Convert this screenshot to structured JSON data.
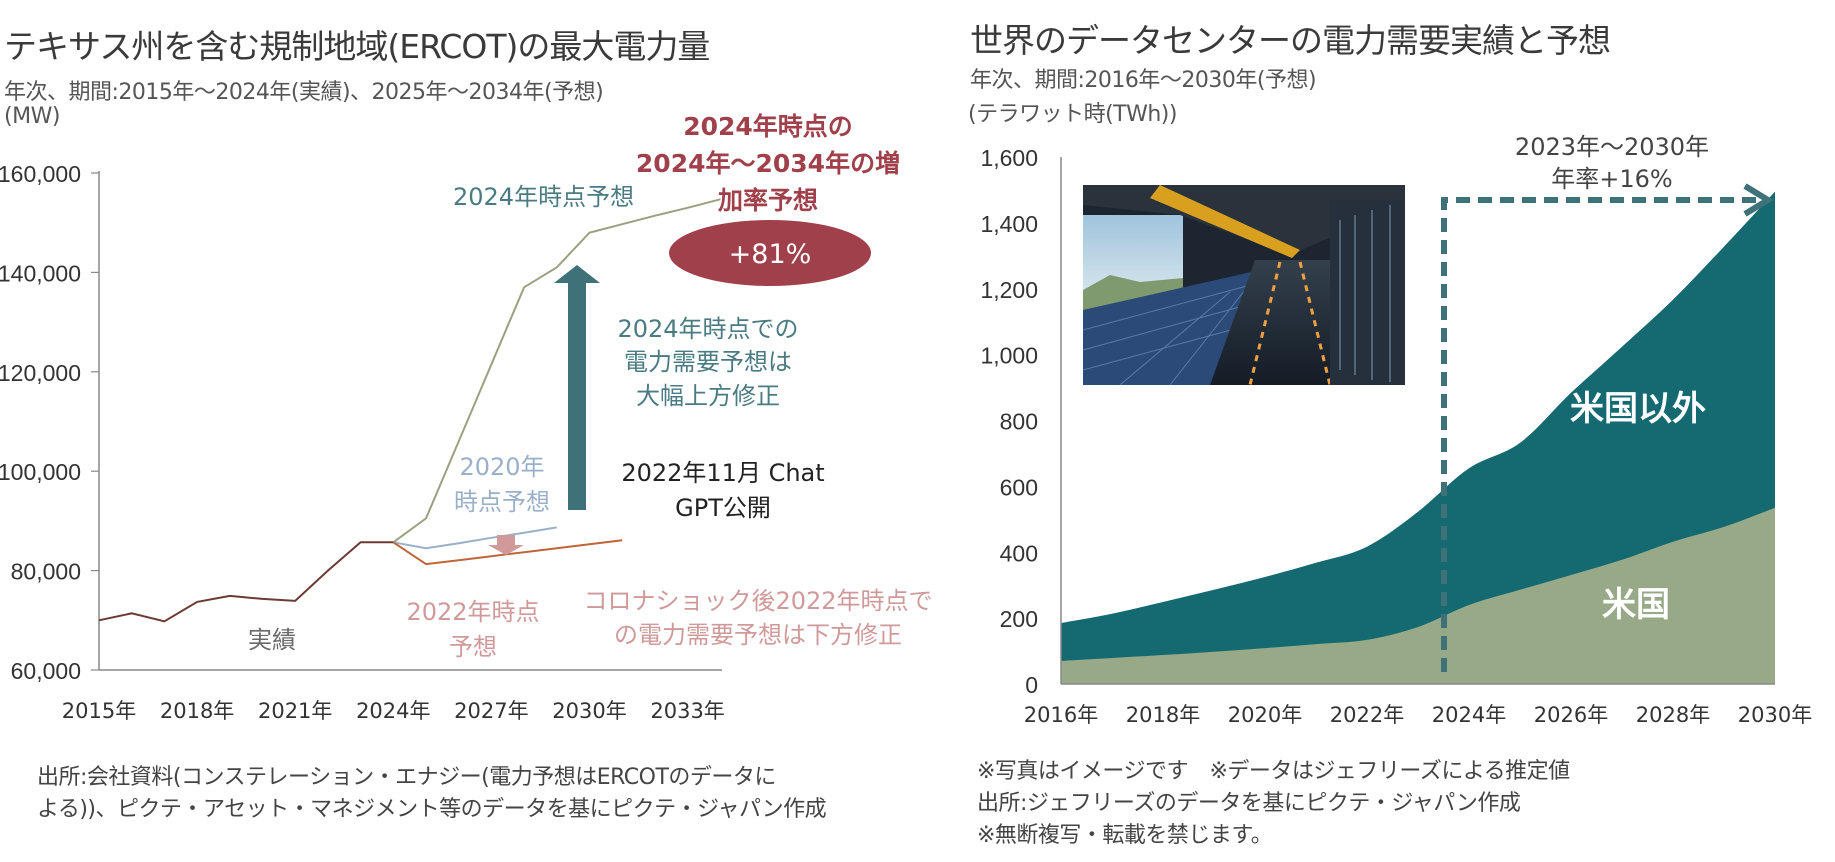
{
  "left": {
    "title": "テキサス州を含む規制地域(ERCOT)の最大電力量",
    "subtitle": "年次、期間:2015年～2024年(実績)、2025年～2034年(予想)",
    "unit": "(MW)",
    "annotations": {
      "forecast_2024": "2024年時点予想",
      "growth_title": [
        "2024年時点の",
        "2024年～2034年の増",
        "加率予想"
      ],
      "growth_value": "+81%",
      "upward": [
        "2024年時点での",
        "電力需要予想は",
        "大幅上方修正"
      ],
      "chatgpt": [
        "2022年11月 Chat",
        "GPT公開"
      ],
      "forecast_2020": [
        "2020年",
        "時点予想"
      ],
      "actual": "実績",
      "forecast_2022": [
        "2022年時点",
        "予想"
      ],
      "downward": [
        "コロナショック後2022年時点で",
        "の電力需要予想は下方修正"
      ]
    },
    "source": [
      "出所:会社資料(コンステレーション・エナジー(電力予想はERCOTのデータに",
      "よる))、ピクテ・アセット・マネジメント等のデータを基にピクテ・ジャパン作成"
    ]
  },
  "right": {
    "title": "世界のデータセンターの電力需要実績と予想",
    "subtitle": "年次、期間:2016年～2030年(予想)",
    "unit": "(テラワット時(TWh))",
    "annotation": [
      "2023年～2030年",
      "年率+16%"
    ],
    "label_non_us": "米国以外",
    "label_us": "米国",
    "photo_icon": "data-center-photo",
    "notes": [
      "※写真はイメージです　※データはジェフリーズによる推定値",
      "出所:ジェフリーズのデータを基にピクテ・ジャパン作成",
      "※無断複写・転載を禁じます。"
    ]
  },
  "colors": {
    "actual": "#6b3a34",
    "forecast_2024": "#9aa080",
    "forecast_2020": "#9ab0c8",
    "forecast_2022": "#c0643a",
    "teal_text": "#4a7b82",
    "teal_arrow": "#3f7179",
    "red": "#a0404a",
    "pink": "#d09a9a",
    "gray_text": "#6a6a6a",
    "us_fill": "#98a988",
    "non_us_fill": "#146a70"
  },
  "chart_data": [
    {
      "type": "line",
      "title": "テキサス州を含む規制地域(ERCOT)の最大電力量",
      "ylabel": "(MW)",
      "ylim": [
        60000,
        160000
      ],
      "yticks": [
        "60,000",
        "80,000",
        "100,000",
        "120,000",
        "140,000",
        "160,000"
      ],
      "xlim": [
        2015,
        2034
      ],
      "xticks": [
        "2015年",
        "2018年",
        "2021年",
        "2024年",
        "2027年",
        "2030年",
        "2033年"
      ],
      "grid": false,
      "series": [
        {
          "name": "実績",
          "x": [
            2015,
            2016,
            2017,
            2018,
            2019,
            2020,
            2021,
            2022,
            2023,
            2024
          ],
          "values": [
            70000,
            71400,
            69800,
            73700,
            74900,
            74300,
            73900,
            80000,
            85700,
            85700
          ]
        },
        {
          "name": "2024年時点予想",
          "x": [
            2024,
            2025,
            2026,
            2027,
            2028,
            2029,
            2030,
            2031,
            2032,
            2033,
            2034
          ],
          "values": [
            85700,
            90500,
            106000,
            121500,
            137000,
            141000,
            148000,
            149700,
            151400,
            153000,
            154700
          ]
        },
        {
          "name": "2020年時点予想",
          "x": [
            2024,
            2025,
            2026,
            2027,
            2028,
            2029
          ],
          "values": [
            85700,
            84500,
            85500,
            86600,
            87600,
            88700
          ]
        },
        {
          "name": "2022年時点予想",
          "x": [
            2024,
            2025,
            2026,
            2027,
            2028,
            2029,
            2030,
            2031
          ],
          "values": [
            85700,
            81300,
            82100,
            82900,
            83700,
            84500,
            85300,
            86100
          ]
        }
      ]
    },
    {
      "type": "area",
      "stacked": true,
      "title": "世界のデータセンターの電力需要実績と予想",
      "ylabel": "(テラワット時(TWh))",
      "ylim": [
        0,
        1600
      ],
      "yticks": [
        "0",
        "200",
        "400",
        "600",
        "800",
        "1,000",
        "1,200",
        "1,400",
        "1,600"
      ],
      "xticks": [
        "2016年",
        "2018年",
        "2020年",
        "2022年",
        "2024年",
        "2026年",
        "2028年",
        "2030年"
      ],
      "x": [
        2016,
        2017,
        2018,
        2019,
        2020,
        2021,
        2022,
        2023,
        2024,
        2025,
        2026,
        2027,
        2028,
        2029,
        2030
      ],
      "grid": false,
      "series": [
        {
          "name": "米国",
          "values": [
            70,
            79,
            88,
            98,
            109,
            121,
            134,
            173,
            240,
            286,
            331,
            377,
            432,
            477,
            535
          ]
        },
        {
          "name": "米国以外",
          "values": [
            115,
            134,
            161,
            188,
            216,
            247,
            283,
            350,
            415,
            446,
            553,
            647,
            735,
            851,
            960
          ]
        }
      ],
      "totals": [
        185,
        213,
        249,
        286,
        325,
        368,
        417,
        523,
        655,
        732,
        884,
        1024,
        1167,
        1328,
        1495
      ],
      "annotation": "2023年～2030年 年率+16%"
    }
  ]
}
